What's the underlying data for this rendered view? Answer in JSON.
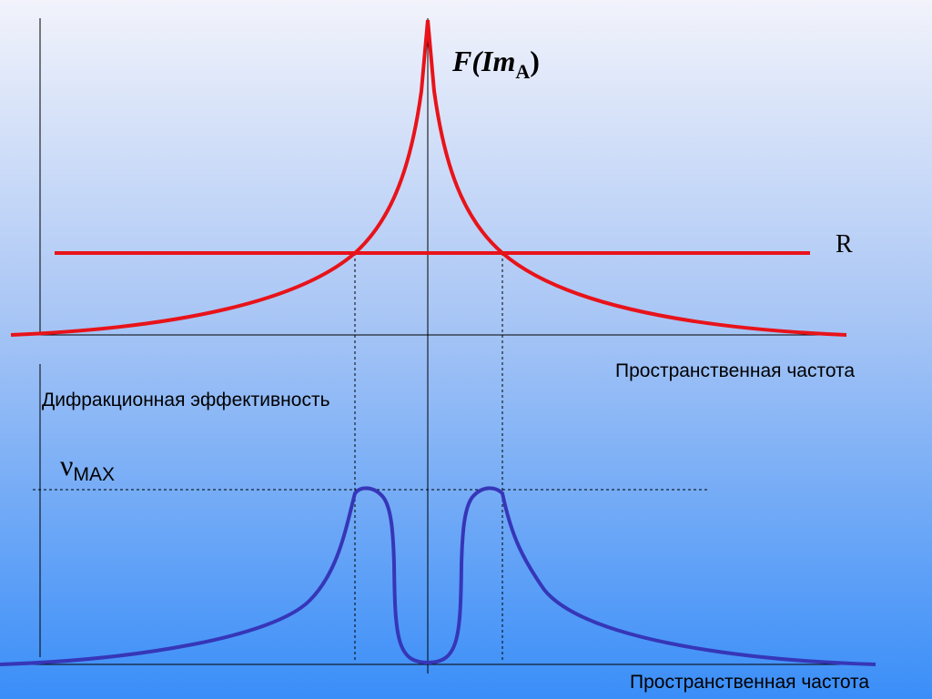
{
  "top_graph": {
    "curve_label": {
      "main": "F(Im",
      "sub": "A",
      "close": ")"
    },
    "level_label": "R",
    "x_axis_label": "Пространственная частота"
  },
  "bottom_graph": {
    "y_axis_label": "Дифракционная эффективность",
    "max_label": {
      "symbol": "ν",
      "sub": "MAX"
    },
    "x_axis_label": "Пространственная частота"
  }
}
